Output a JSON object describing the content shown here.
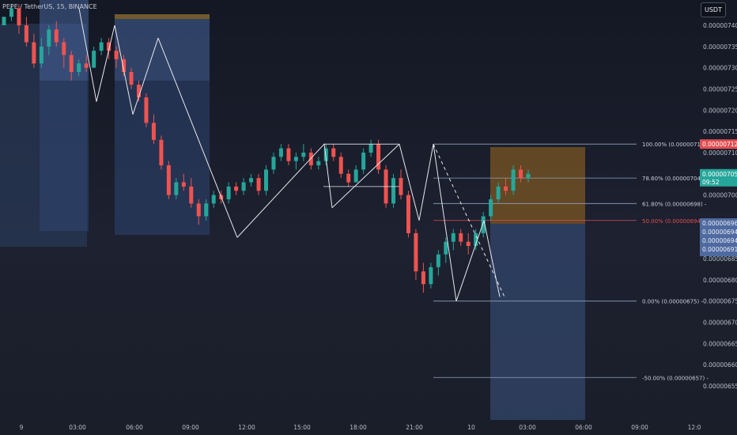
{
  "header": {
    "title": "PEPE / TetherUS, 15, BINANCE",
    "currency": "USDT"
  },
  "chart_data": {
    "type": "candlestick",
    "symbol": "PEPE / TetherUS",
    "interval": "15",
    "exchange": "BINANCE",
    "y_axis": {
      "range": [
        6.54e-06,
        7.42e-06
      ],
      "ticks": [
        "0.00000740",
        "0.00000735",
        "0.00000730",
        "0.00000725",
        "0.00000720",
        "0.00000715",
        "0.00000710",
        "0.00000700",
        "0.00000685",
        "0.00000680",
        "0.00000675",
        "0.00000670",
        "0.00000665",
        "0.00000660",
        "0.00000655"
      ]
    },
    "x_axis": {
      "ticks": [
        "9",
        "03:00",
        "06:00",
        "09:00",
        "12:00",
        "15:00",
        "18:00",
        "21:00",
        "10",
        "03:00",
        "06:00",
        "09:00",
        "12:0"
      ]
    },
    "price_labels": {
      "last": {
        "value": "0.00000705",
        "countdown": "09:52",
        "color": "#26a69a"
      },
      "fib_top": {
        "value": "0.00000712",
        "color": "#e04e52"
      },
      "blue": [
        "0.00000696",
        "0.00000694",
        "0.00000694",
        "0.00000691"
      ]
    },
    "fib_levels": [
      {
        "label": "100.00% (0.00000712)",
        "price": 7.12e-06
      },
      {
        "label": "78.60% (0.00000704)",
        "price": 7.04e-06
      },
      {
        "label": "61.80% (0.00000698) -",
        "price": 6.98e-06
      },
      {
        "label": "50.00% (0.00000694) -",
        "price": 6.94e-06,
        "color": "#e04e52"
      },
      {
        "label": "0.00% (0.00000675) -",
        "price": 6.75e-06
      },
      {
        "label": "-50.00% (0.00000657) -",
        "price": 6.57e-06
      }
    ],
    "candles": [
      [
        7.4e-06,
        7.42e-06,
        7.4e-06,
        7.42e-06
      ],
      [
        7.42e-06,
        7.45e-06,
        7.41e-06,
        7.44e-06
      ],
      [
        7.44e-06,
        7.45e-06,
        7.38e-06,
        7.4e-06
      ],
      [
        7.4e-06,
        7.42e-06,
        7.35e-06,
        7.36e-06
      ],
      [
        7.36e-06,
        7.38e-06,
        7.3e-06,
        7.31e-06
      ],
      [
        7.31e-06,
        7.37e-06,
        7.3e-06,
        7.35e-06
      ],
      [
        7.35e-06,
        7.4e-06,
        7.33e-06,
        7.39e-06
      ],
      [
        7.39e-06,
        7.41e-06,
        7.35e-06,
        7.36e-06
      ],
      [
        7.36e-06,
        7.37e-06,
        7.3e-06,
        7.33e-06
      ],
      [
        7.33e-06,
        7.34e-06,
        7.27e-06,
        7.29e-06
      ],
      [
        7.29e-06,
        7.32e-06,
        7.28e-06,
        7.31e-06
      ],
      [
        7.31e-06,
        7.33e-06,
        7.29e-06,
        7.3e-06
      ],
      [
        7.3e-06,
        7.35e-06,
        7.3e-06,
        7.34e-06
      ],
      [
        7.34e-06,
        7.37e-06,
        7.33e-06,
        7.36e-06
      ],
      [
        7.36e-06,
        7.37e-06,
        7.32e-06,
        7.34e-06
      ],
      [
        7.34e-06,
        7.35e-06,
        7.3e-06,
        7.32e-06
      ],
      [
        7.32e-06,
        7.33e-06,
        7.28e-06,
        7.29e-06
      ],
      [
        7.29e-06,
        7.3e-06,
        7.25e-06,
        7.26e-06
      ],
      [
        7.26e-06,
        7.27e-06,
        7.22e-06,
        7.23e-06
      ],
      [
        7.23e-06,
        7.24e-06,
        7.16e-06,
        7.17e-06
      ],
      [
        7.17e-06,
        7.19e-06,
        7.12e-06,
        7.13e-06
      ],
      [
        7.13e-06,
        7.14e-06,
        7.06e-06,
        7.07e-06
      ],
      [
        7.07e-06,
        7.08e-06,
        6.99e-06,
        7e-06
      ],
      [
        7e-06,
        7.04e-06,
        6.99e-06,
        7.03e-06
      ],
      [
        7.03e-06,
        7.05e-06,
        7.01e-06,
        7.02e-06
      ],
      [
        7.02e-06,
        7.04e-06,
        6.97e-06,
        6.98e-06
      ],
      [
        6.98e-06,
        6.99e-06,
        6.93e-06,
        6.95e-06
      ],
      [
        6.95e-06,
        6.99e-06,
        6.94e-06,
        6.98e-06
      ],
      [
        6.98e-06,
        7.01e-06,
        6.97e-06,
        7e-06
      ],
      [
        7e-06,
        7.01e-06,
        6.98e-06,
        6.99e-06
      ],
      [
        6.99e-06,
        7.03e-06,
        6.98e-06,
        7.02e-06
      ],
      [
        7.02e-06,
        7.03e-06,
        7e-06,
        7.01e-06
      ],
      [
        7.01e-06,
        7.04e-06,
        7e-06,
        7.03e-06
      ],
      [
        7.03e-06,
        7.05e-06,
        7.02e-06,
        7.04e-06
      ],
      [
        7.04e-06,
        7.05e-06,
        7e-06,
        7.01e-06
      ],
      [
        7.01e-06,
        7.07e-06,
        7e-06,
        7.06e-06
      ],
      [
        7.06e-06,
        7.1e-06,
        7.05e-06,
        7.09e-06
      ],
      [
        7.09e-06,
        7.12e-06,
        7.08e-06,
        7.11e-06
      ],
      [
        7.11e-06,
        7.12e-06,
        7.07e-06,
        7.08e-06
      ],
      [
        7.08e-06,
        7.1e-06,
        7.06e-06,
        7.09e-06
      ],
      [
        7.09e-06,
        7.12e-06,
        7.08e-06,
        7.1e-06
      ],
      [
        7.1e-06,
        7.11e-06,
        7.06e-06,
        7.07e-06
      ],
      [
        7.07e-06,
        7.09e-06,
        7.06e-06,
        7.08e-06
      ],
      [
        7.08e-06,
        7.12e-06,
        7.07e-06,
        7.11e-06
      ],
      [
        7.11e-06,
        7.12e-06,
        7.08e-06,
        7.09e-06
      ],
      [
        7.09e-06,
        7.1e-06,
        7.04e-06,
        7.05e-06
      ],
      [
        7.05e-06,
        7.06e-06,
        7.02e-06,
        7.03e-06
      ],
      [
        7.03e-06,
        7.07e-06,
        7.03e-06,
        7.06e-06
      ],
      [
        7.06e-06,
        7.11e-06,
        7.05e-06,
        7.1e-06
      ],
      [
        7.1e-06,
        7.13e-06,
        7.09e-06,
        7.12e-06
      ],
      [
        7.12e-06,
        7.13e-06,
        7.05e-06,
        7.06e-06
      ],
      [
        7.06e-06,
        7.07e-06,
        6.97e-06,
        6.98e-06
      ],
      [
        6.98e-06,
        7.05e-06,
        6.97e-06,
        7.04e-06
      ],
      [
        7.04e-06,
        7.06e-06,
        6.99e-06,
        7e-06
      ],
      [
        7e-06,
        7.01e-06,
        6.9e-06,
        6.91e-06
      ],
      [
        6.91e-06,
        6.92e-06,
        6.8e-06,
        6.82e-06
      ],
      [
        6.82e-06,
        6.84e-06,
        6.77e-06,
        6.79e-06
      ],
      [
        6.79e-06,
        6.84e-06,
        6.78e-06,
        6.83e-06
      ],
      [
        6.83e-06,
        6.87e-06,
        6.81e-06,
        6.86e-06
      ],
      [
        6.86e-06,
        6.9e-06,
        6.84e-06,
        6.89e-06
      ],
      [
        6.89e-06,
        6.92e-06,
        6.87e-06,
        6.91e-06
      ],
      [
        6.91e-06,
        6.92e-06,
        6.88e-06,
        6.89e-06
      ],
      [
        6.89e-06,
        6.91e-06,
        6.86e-06,
        6.88e-06
      ],
      [
        6.88e-06,
        6.92e-06,
        6.87e-06,
        6.91e-06
      ],
      [
        6.91e-06,
        6.96e-06,
        6.9e-06,
        6.95e-06
      ],
      [
        6.95e-06,
        7e-06,
        6.94e-06,
        6.99e-06
      ],
      [
        6.99e-06,
        7.03e-06,
        6.98e-06,
        7.02e-06
      ],
      [
        7.02e-06,
        7.04e-06,
        7e-06,
        7.01e-06
      ],
      [
        7.01e-06,
        7.07e-06,
        7e-06,
        7.06e-06
      ],
      [
        7.06e-06,
        7.07e-06,
        7.03e-06,
        7.04e-06
      ],
      [
        7.04e-06,
        7.06e-06,
        7.03e-06,
        7.05e-06
      ]
    ],
    "zigzag": [
      [
        7.44e-06,
        7.22e-06,
        7.4e-06,
        7.19e-06,
        7.37e-06,
        6.9e-06,
        7.12e-06,
        6.97e-06,
        7.12e-06,
        6.94e-06,
        7.12e-06
      ],
      [
        7.12e-06,
        6.75e-06,
        6.94e-06,
        6.76e-06
      ]
    ],
    "annotations": {
      "dashed_target_price": 6.76e-06
    }
  }
}
